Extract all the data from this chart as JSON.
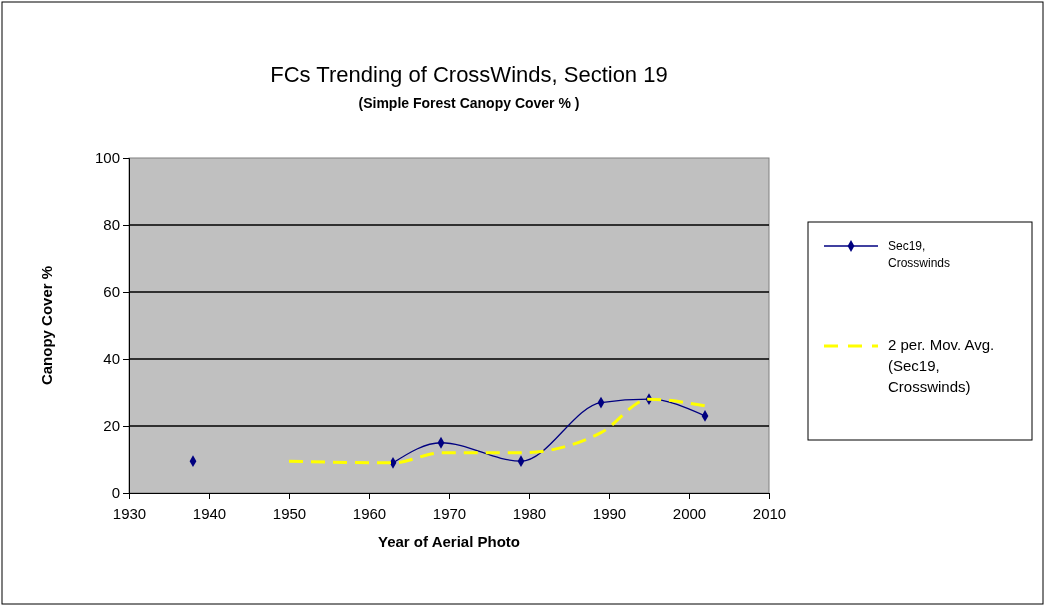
{
  "chart_data": {
    "type": "line",
    "title": "FCs Trending of CrossWinds, Section 19",
    "subtitle": "(Simple Forest Canopy Cover % )",
    "xlabel": "Year of Aerial Photo",
    "ylabel": "Canopy Cover %",
    "xlim": [
      1930,
      2010
    ],
    "xticks": [
      1930,
      1940,
      1950,
      1960,
      1970,
      1980,
      1990,
      2000,
      2010
    ],
    "ylim": [
      0,
      100
    ],
    "yticks": [
      0,
      20,
      40,
      60,
      80,
      100
    ],
    "grid": "y",
    "legend": "right",
    "series": [
      {
        "name": "Sec19, Crosswinds",
        "color": "#000080",
        "marker": "diamond",
        "line_style": "solid",
        "x": [
          1938,
          1950,
          1963,
          1969,
          1979,
          1989,
          1995,
          2002
        ],
        "values": [
          9.5,
          null,
          9,
          15,
          9.5,
          27,
          28,
          23
        ]
      },
      {
        "name": "2 per. Mov. Avg. (Sec19, Crosswinds)",
        "color": "#ffff00",
        "marker": "none",
        "line_style": "dashed",
        "x": [
          1950,
          1963,
          1969,
          1979,
          1989,
          1995,
          2002
        ],
        "values": [
          9.5,
          9,
          12,
          12,
          18,
          28,
          26
        ]
      }
    ]
  }
}
